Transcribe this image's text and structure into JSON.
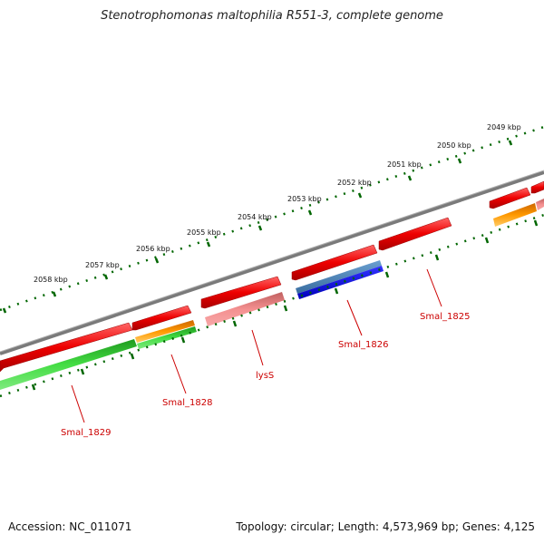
{
  "title": "Stenotrophomonas maltophilia R551-3, complete genome",
  "ruler": {
    "ticks": [
      "2049 kbp",
      "2050 kbp",
      "2051 kbp",
      "2052 kbp",
      "2053 kbp",
      "2054 kbp",
      "2055 kbp",
      "2056 kbp",
      "2057 kbp",
      "2058 kbp"
    ]
  },
  "genes": {
    "labels": [
      "Smal_1825",
      "Smal_1826",
      "lysS",
      "Smal_1828",
      "Smal_1829"
    ]
  },
  "colors": {
    "backbone": "#808080",
    "cds_forward": "#ee0000",
    "cds_forward_light": "#f08080",
    "orange": "#ff9900",
    "green": "#33cc33",
    "blue": "#0000ee",
    "steel_blue": "#4682b4",
    "tick_green": "#006600"
  },
  "footer": {
    "accession": "Accession: NC_011071",
    "summary": "Topology: circular; Length: 4,573,969 bp; Genes: 4,125"
  }
}
